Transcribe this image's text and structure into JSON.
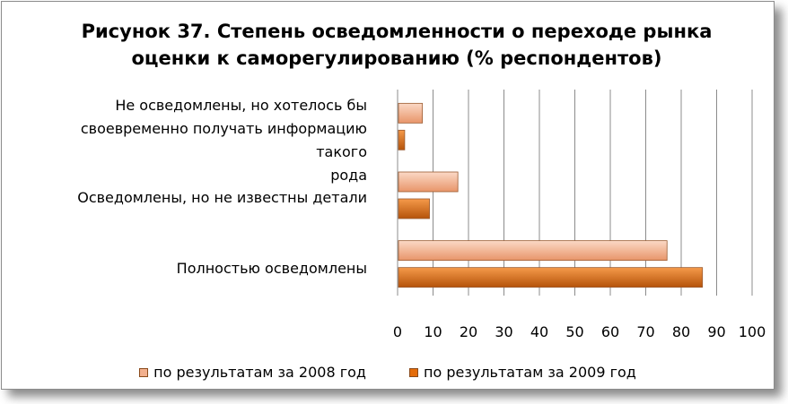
{
  "title_line1": "Рисунок 37. Степень осведомленности о переходе рынка",
  "title_line2": "оценки к саморегулированию (% респондентов)",
  "chart_data": {
    "type": "bar",
    "orientation": "horizontal",
    "title": "Рисунок 37. Степень осведомленности о переходе рынка оценки к саморегулированию (% респондентов)",
    "categories": [
      "Не осведомлены, но хотелось бы своевременно получать информацию такого рода",
      "Осведомлены, но не известны детали",
      "Полностью осведомлены"
    ],
    "category_lines": [
      [
        "Не осведомлены, но хотелось бы",
        "своевременно получать информацию такого",
        "рода"
      ],
      [
        "Осведомлены, но не известны детали"
      ],
      [
        "Полностью осведомлены"
      ]
    ],
    "series": [
      {
        "name": "по результатам за 2008 год",
        "values": [
          7,
          17,
          76
        ],
        "color": "#f2b08e"
      },
      {
        "name": "по результатам за 2009 год",
        "values": [
          2,
          9,
          86
        ],
        "color": "#e46c0a"
      }
    ],
    "xlim": [
      0,
      100
    ],
    "xticks": [
      "0",
      "10",
      "20",
      "30",
      "40",
      "50",
      "60",
      "70",
      "80",
      "90",
      "100"
    ],
    "grid": true,
    "legend_position": "bottom"
  }
}
